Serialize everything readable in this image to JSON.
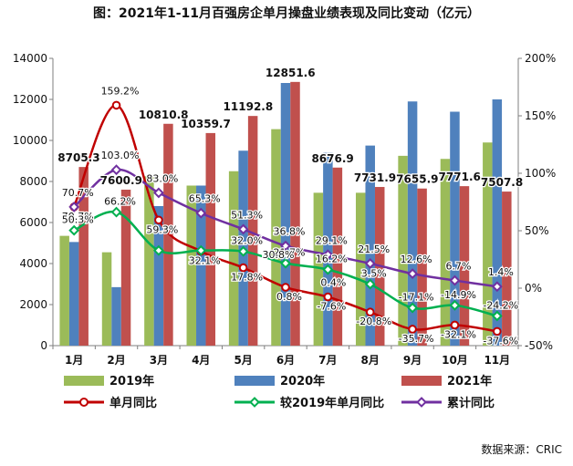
{
  "chart_data": {
    "type": "bar",
    "title": "图：2021年1-11月百强房企单月操盘业绩表现及同比变动（亿元）",
    "categories": [
      "1月",
      "2月",
      "3月",
      "4月",
      "5月",
      "6月",
      "7月",
      "8月",
      "9月",
      "10月",
      "11月"
    ],
    "left_axis": {
      "min": 0,
      "max": 14000,
      "step": 2000,
      "ticks": [
        "0",
        "2000",
        "4000",
        "6000",
        "8000",
        "10000",
        "12000",
        "14000"
      ]
    },
    "right_axis": {
      "min": -50,
      "max": 200,
      "step": 50,
      "ticks": [
        "-50%",
        "0%",
        "50%",
        "100%",
        "150%",
        "200%"
      ]
    },
    "grid": false,
    "legend_position": "bottom",
    "bar_series": [
      {
        "name": "2019年",
        "color": "#9bbb59",
        "values": [
          5350,
          4550,
          8250,
          7800,
          8500,
          10550,
          7450,
          7450,
          9250,
          9100,
          9900
        ]
      },
      {
        "name": "2020年",
        "color": "#4f81bd",
        "values": [
          5050,
          2850,
          6800,
          7800,
          9500,
          12800,
          9400,
          9750,
          11900,
          11400,
          12000
        ]
      },
      {
        "name": "2021年",
        "color": "#c0504d",
        "values": [
          8705.3,
          7600.9,
          10810.8,
          10359.7,
          11192.8,
          12851.6,
          8676.9,
          7731.9,
          7655.9,
          7771.6,
          7507.8
        ],
        "labels": [
          "8705.3",
          "7600.9",
          "10810.8",
          "10359.7",
          "11192.8",
          "12851.6",
          "8676.9",
          "7731.9",
          "7655.9",
          "7771.6",
          "7507.8"
        ]
      }
    ],
    "line_series": [
      {
        "name": "单月同比",
        "color": "#c00000",
        "values": [
          70.7,
          159.2,
          59.3,
          32.1,
          17.8,
          0.8,
          -7.6,
          -20.8,
          -35.7,
          -32.1,
          -37.6
        ],
        "labels": [
          "70.7%",
          "159.2%",
          "59.3%",
          "32.1%",
          "17.8%",
          "0.8%",
          "-7.6%",
          "-20.8%",
          "-35.7%",
          "-32.1%",
          "-37.6%"
        ]
      },
      {
        "name": "较2019年单月同比",
        "color": "#00b050",
        "values": [
          50.3,
          66.2,
          32.8,
          32.8,
          32.0,
          21.7,
          16.2,
          3.5,
          -17.1,
          -14.9,
          -24.2
        ],
        "labels": [
          "50.3%",
          "66.2%",
          "",
          "",
          "32.0%",
          "21.7%",
          "16.2%",
          "3.5%",
          "-17.1%",
          "-14.9%",
          "-24.2%"
        ]
      },
      {
        "name": "累计同比",
        "color": "#7030a0",
        "values": [
          70.7,
          103.0,
          83.0,
          65.3,
          51.3,
          36.8,
          29.1,
          21.5,
          12.6,
          6.7,
          1.4
        ],
        "labels": [
          "70.7%",
          "103.0%",
          "83.0%",
          "65.3%",
          "51.3%",
          "36.8%",
          "29.1%",
          "21.5%",
          "12.6%",
          "6.7%",
          "1.4%"
        ]
      }
    ],
    "extra_labels": [
      "30.8%",
      "0.4%"
    ]
  },
  "source_note": "数据来源：CRIC"
}
